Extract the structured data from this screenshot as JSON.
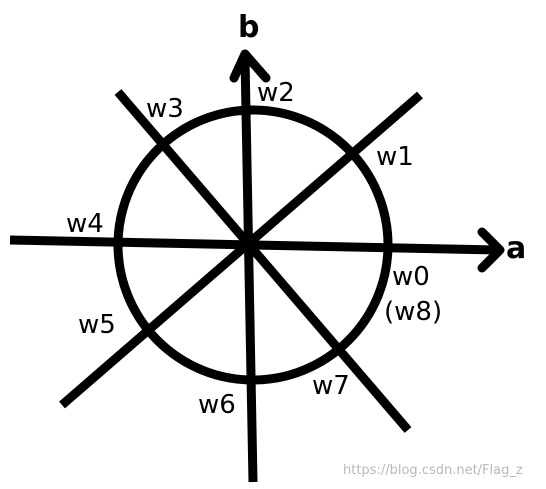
{
  "diagram": {
    "axes": {
      "horizontal_label": "a",
      "vertical_label": "b"
    },
    "vectors": [
      {
        "label": "w0",
        "sublabel": "(w8)"
      },
      {
        "label": "w1"
      },
      {
        "label": "w2"
      },
      {
        "label": "w3"
      },
      {
        "label": "w4"
      },
      {
        "label": "w5"
      },
      {
        "label": "w6"
      },
      {
        "label": "w7"
      }
    ],
    "watermark": "https://blog.csdn.net/Flag_z",
    "colors": {
      "ink": "#000000",
      "background": "#ffffff",
      "watermark": "#b8b8b8"
    }
  }
}
